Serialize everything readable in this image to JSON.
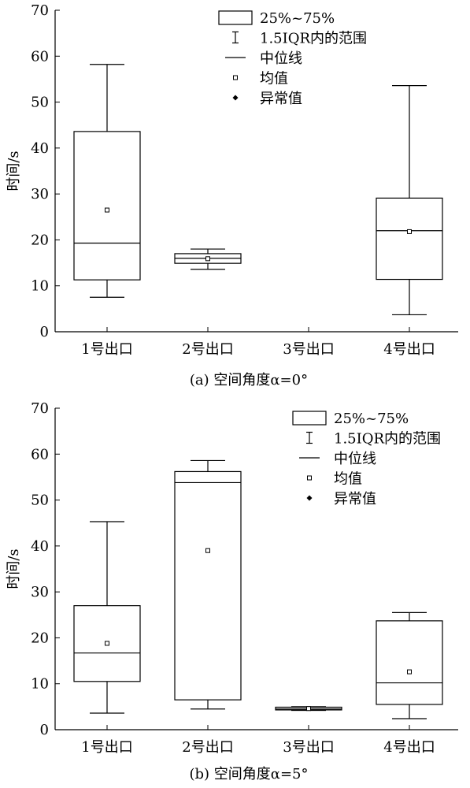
{
  "chart_data": [
    {
      "type": "box",
      "caption": "(a)  空间角度α=0°",
      "ylabel": "时间/s",
      "xlabel": "",
      "ylim": [
        0,
        70
      ],
      "yticks": [
        0,
        10,
        20,
        30,
        40,
        50,
        60,
        70
      ],
      "categories": [
        "1号出口",
        "2号出口",
        "3号出口",
        "4号出口"
      ],
      "boxes": [
        {
          "whisker_low": 7.5,
          "q1": 11.3,
          "median": 19.3,
          "q3": 43.6,
          "whisker_high": 58.2,
          "mean": 26.5
        },
        {
          "whisker_low": 13.6,
          "q1": 14.9,
          "median": 16.0,
          "q3": 17.0,
          "whisker_high": 18.0,
          "mean": 15.9
        },
        null,
        {
          "whisker_low": 3.7,
          "q1": 11.4,
          "median": 22.0,
          "q3": 29.1,
          "whisker_high": 53.6,
          "mean": 21.8
        }
      ],
      "legend": {
        "position": "top-right",
        "items": [
          "25%~75%",
          "1.5IQR内的范围",
          "中位线",
          "均值",
          "异常值"
        ]
      }
    },
    {
      "type": "box",
      "caption": "(b)  空间角度α=5°",
      "ylabel": "时间/s",
      "xlabel": "",
      "ylim": [
        0,
        70
      ],
      "yticks": [
        0,
        10,
        20,
        30,
        40,
        50,
        60,
        70
      ],
      "categories": [
        "1号出口",
        "2号出口",
        "3号出口",
        "4号出口"
      ],
      "boxes": [
        {
          "whisker_low": 3.6,
          "q1": 10.5,
          "median": 16.7,
          "q3": 27.0,
          "whisker_high": 45.3,
          "mean": 18.8
        },
        {
          "whisker_low": 4.5,
          "q1": 6.5,
          "median": 53.8,
          "q3": 56.2,
          "whisker_high": 58.6,
          "mean": 39.0
        },
        {
          "whisker_low": 4.2,
          "q1": 4.3,
          "median": 4.5,
          "q3": 4.9,
          "whisker_high": 5.0,
          "mean": 4.6
        },
        {
          "whisker_low": 2.4,
          "q1": 5.5,
          "median": 10.2,
          "q3": 23.7,
          "whisker_high": 25.5,
          "mean": 12.6
        }
      ],
      "legend": {
        "position": "top-right",
        "items": [
          "25%~75%",
          "1.5IQR内的范围",
          "中位线",
          "均值",
          "异常值"
        ]
      }
    }
  ]
}
